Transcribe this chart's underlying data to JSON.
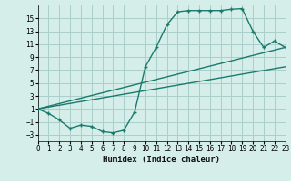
{
  "xlabel": "Humidex (Indice chaleur)",
  "bg_color": "#d6eee9",
  "grid_color": "#aacfca",
  "line_color": "#1a7a6e",
  "xlim": [
    0,
    23
  ],
  "ylim": [
    -4,
    17
  ],
  "xticks": [
    0,
    1,
    2,
    3,
    4,
    5,
    6,
    7,
    8,
    9,
    10,
    11,
    12,
    13,
    14,
    15,
    16,
    17,
    18,
    19,
    20,
    21,
    22,
    23
  ],
  "yticks": [
    -3,
    -1,
    1,
    3,
    5,
    7,
    9,
    11,
    13,
    15
  ],
  "line1_x": [
    0,
    1,
    2,
    3,
    4,
    5,
    6,
    7,
    8,
    9,
    10,
    11,
    12,
    13,
    14,
    15,
    16,
    17,
    18,
    19,
    20,
    21,
    22,
    23
  ],
  "line1_y": [
    1,
    0.3,
    -0.7,
    -2.0,
    -1.5,
    -1.7,
    -2.5,
    -2.7,
    -2.3,
    0.5,
    7.5,
    10.5,
    14.0,
    16.0,
    16.2,
    16.2,
    16.2,
    16.2,
    16.4,
    16.5,
    13.0,
    10.5,
    11.5,
    10.5
  ],
  "line2_x": [
    0,
    23
  ],
  "line2_y": [
    1,
    10.5
  ],
  "line3_x": [
    0,
    23
  ],
  "line3_y": [
    1,
    7.5
  ]
}
